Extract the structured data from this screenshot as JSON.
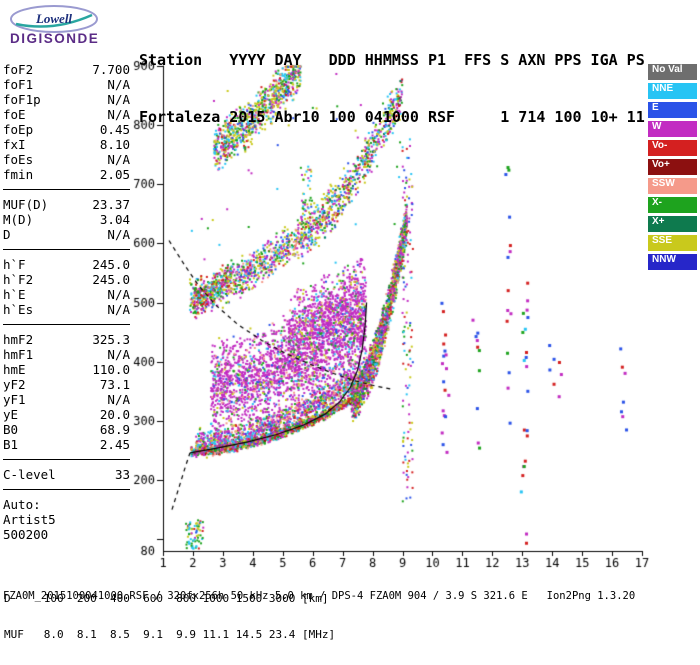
{
  "window": {
    "bg": "#ffffff"
  },
  "logo": {
    "text_top": "Lowell",
    "text_bottom": "DIGISONDE",
    "oval_color": "#9a9ad0",
    "text_top_color": "#1c2f7c",
    "text_bottom_color": "#5b2c86",
    "swoosh_color": "#2aa6a0"
  },
  "header": {
    "line1": "Station   YYYY DAY   DDD HHMMSS P1  FFS S AXN PPS IGA PS",
    "line2": "Fortaleza 2015 Abr10 100 041000 RSF     1 714 100 10+ 11"
  },
  "left_panel": {
    "groups": [
      {
        "rows": [
          [
            "foF2",
            "7.700"
          ],
          [
            "foF1",
            "N/A"
          ],
          [
            "foF1p",
            "N/A"
          ],
          [
            "foE",
            "N/A"
          ],
          [
            "foEp",
            "0.45"
          ],
          [
            "fxI",
            "8.10"
          ],
          [
            "foEs",
            "N/A"
          ],
          [
            "fmin",
            "2.05"
          ]
        ]
      },
      {
        "rows": [
          [
            "MUF(D)",
            "23.37"
          ],
          [
            "M(D)",
            "3.04"
          ],
          [
            "D",
            "N/A"
          ]
        ]
      },
      {
        "rows": [
          [
            "h`F",
            "245.0"
          ],
          [
            "h`F2",
            "245.0"
          ],
          [
            "h`E",
            "N/A"
          ],
          [
            "h`Es",
            "N/A"
          ]
        ]
      },
      {
        "rows": [
          [
            "hmF2",
            "325.3"
          ],
          [
            "hmF1",
            "N/A"
          ],
          [
            "hmE",
            "110.0"
          ],
          [
            "yF2",
            "73.1"
          ],
          [
            "yF1",
            "N/A"
          ],
          [
            "yE",
            "20.0"
          ],
          [
            "B0",
            "68.9"
          ],
          [
            "B1",
            "2.45"
          ]
        ]
      },
      {
        "rows": [
          [
            "C-level",
            "33"
          ]
        ]
      }
    ],
    "footer_lines": [
      "Auto:",
      "Artist5",
      "500200"
    ]
  },
  "legend": {
    "items": [
      {
        "label": "No Val",
        "color": "#6e6e6e"
      },
      {
        "label": "NNE",
        "color": "#27c4f4"
      },
      {
        "label": "E",
        "color": "#2a52e8"
      },
      {
        "label": "W",
        "color": "#c22cc2"
      },
      {
        "label": "Vo-",
        "color": "#d42020"
      },
      {
        "label": "Vo+",
        "color": "#8c1010"
      },
      {
        "label": "SSW",
        "color": "#f59a8a"
      },
      {
        "label": "X-",
        "color": "#1ea31e"
      },
      {
        "label": "X+",
        "color": "#0e7a4e"
      },
      {
        "label": "SSE",
        "color": "#c9c91c"
      },
      {
        "label": "NNW",
        "color": "#2626c9"
      }
    ]
  },
  "chart_data": {
    "type": "scatter",
    "x_axis": {
      "unit": "MHz",
      "min": 1,
      "max": 17,
      "tick_labels": [
        1,
        2,
        3,
        4,
        5,
        6,
        7,
        8,
        9,
        10,
        11,
        12,
        13,
        14,
        15,
        16,
        17
      ]
    },
    "y_axis": {
      "unit": "km",
      "min": 80,
      "max": 900,
      "tick_labels": [
        900,
        800,
        700,
        600,
        500,
        400,
        300,
        200,
        80
      ],
      "tick_marks": [
        100,
        200,
        300,
        400,
        500,
        600,
        700,
        800,
        900
      ]
    },
    "colors": {
      "NoVal": "#6e6e6e",
      "NNE": "#27c4f4",
      "E": "#2a52e8",
      "W": "#c22cc2",
      "Vo-": "#d42020",
      "Vo+": "#8c1010",
      "SSW": "#f59a8a",
      "X-": "#1ea31e",
      "X+": "#0e7a4e",
      "SSE": "#c9c91c",
      "NNW": "#2626c9"
    },
    "echo_regions": [
      {
        "name": "f-trace-core",
        "f0": 1.95,
        "f1": 7.3,
        "h0": 248,
        "h1": 335,
        "curve": 1.8,
        "spread": 9,
        "n": 1200,
        "colors": {
          "Vo-": 0.2,
          "X-": 0.26,
          "Vo+": 0.08,
          "SSE": 0.12,
          "NNE": 0.12,
          "W": 0.12,
          "SSW": 0.1
        }
      },
      {
        "name": "f-trace-upper",
        "f0": 2.1,
        "f1": 7.4,
        "h0": 262,
        "h1": 370,
        "curve": 1.8,
        "spread": 26,
        "n": 1100,
        "colors": {
          "W": 0.34,
          "NNE": 0.15,
          "X-": 0.14,
          "SSE": 0.12,
          "SSW": 0.1,
          "Vo-": 0.09,
          "E": 0.06
        }
      },
      {
        "name": "spread-f-cloud",
        "f0": 2.6,
        "f1": 7.8,
        "h0": 350,
        "h1": 460,
        "curve": 1.3,
        "spread": 90,
        "n": 2300,
        "colors": {
          "W": 0.72,
          "SSW": 0.07,
          "NNE": 0.06,
          "X-": 0.06,
          "SSE": 0.05,
          "E": 0.04
        }
      },
      {
        "name": "spread-f-column",
        "f0": 5.2,
        "f1": 7.75,
        "h0": 450,
        "h1": 515,
        "curve": 1.0,
        "spread": 70,
        "n": 750,
        "colors": {
          "W": 0.7,
          "SSE": 0.08,
          "X-": 0.08,
          "NNE": 0.06,
          "SSW": 0.05,
          "E": 0.03
        }
      },
      {
        "name": "f-cusp",
        "f0": 7.3,
        "f1": 9.15,
        "h0": 340,
        "h1": 640,
        "curve": 1.7,
        "spread": 42,
        "n": 1700,
        "colors": {
          "W": 0.3,
          "X-": 0.16,
          "SSE": 0.16,
          "Vo-": 0.1,
          "NNE": 0.1,
          "SSW": 0.08,
          "E": 0.05,
          "X+": 0.05
        }
      },
      {
        "name": "second-hop",
        "f0": 1.9,
        "f1": 5.7,
        "h0": 505,
        "h1": 615,
        "curve": 1.3,
        "spread": 38,
        "n": 700,
        "colors": {
          "W": 0.3,
          "SSE": 0.18,
          "X-": 0.16,
          "NNE": 0.12,
          "Vo-": 0.08,
          "SSW": 0.08,
          "E": 0.08
        }
      },
      {
        "name": "second-hop-start",
        "f0": 2.0,
        "f1": 3.3,
        "h0": 500,
        "h1": 545,
        "curve": 1.0,
        "spread": 28,
        "n": 260,
        "colors": {
          "X-": 0.25,
          "W": 0.25,
          "SSE": 0.2,
          "NNE": 0.15,
          "Vo-": 0.15
        }
      },
      {
        "name": "third-hop",
        "f0": 2.7,
        "f1": 5.6,
        "h0": 760,
        "h1": 895,
        "curve": 1.2,
        "spread": 45,
        "n": 850,
        "colors": {
          "SSE": 0.28,
          "X-": 0.18,
          "NNE": 0.16,
          "W": 0.16,
          "E": 0.08,
          "Vo-": 0.08,
          "SSW": 0.06
        }
      },
      {
        "name": "second-hop-cusp",
        "f0": 5.7,
        "f1": 9.0,
        "h0": 620,
        "h1": 855,
        "curve": 1.4,
        "spread": 45,
        "n": 650,
        "colors": {
          "SSE": 0.24,
          "W": 0.24,
          "X-": 0.14,
          "NNE": 0.12,
          "Vo-": 0.1,
          "X+": 0.08,
          "E": 0.08
        }
      },
      {
        "name": "interhop-column",
        "f0": 5.6,
        "f1": 6.0,
        "h0": 600,
        "h1": 730,
        "uniform": true,
        "n": 60,
        "colors": {
          "SSE": 0.3,
          "X-": 0.25,
          "W": 0.25,
          "NNE": 0.2
        }
      },
      {
        "name": "spread-column-9mhz",
        "f0": 9.0,
        "f1": 9.35,
        "h0": 160,
        "h1": 780,
        "uniform": true,
        "n": 130,
        "colors": {
          "W": 0.25,
          "E": 0.2,
          "Vo-": 0.15,
          "X-": 0.15,
          "NNE": 0.1,
          "SSE": 0.15
        }
      },
      {
        "name": "rfi-10mhz",
        "f0": 10.3,
        "f1": 10.55,
        "h0": 240,
        "h1": 500,
        "uniform": true,
        "n": 18,
        "colors": {
          "W": 0.3,
          "E": 0.25,
          "Vo-": 0.2,
          "X-": 0.25
        }
      },
      {
        "name": "rfi-11mhz",
        "f0": 11.35,
        "f1": 11.6,
        "h0": 250,
        "h1": 530,
        "uniform": true,
        "n": 10,
        "colors": {
          "E": 0.3,
          "W": 0.3,
          "Vo-": 0.2,
          "X-": 0.2
        }
      },
      {
        "name": "rfi-12mhz",
        "f0": 12.45,
        "f1": 12.65,
        "h0": 290,
        "h1": 740,
        "uniform": true,
        "n": 15,
        "colors": {
          "E": 0.4,
          "Vo-": 0.2,
          "W": 0.2,
          "X-": 0.2
        }
      },
      {
        "name": "rfi-13mhz",
        "f0": 12.95,
        "f1": 13.2,
        "h0": 90,
        "h1": 570,
        "uniform": true,
        "n": 22,
        "colors": {
          "E": 0.3,
          "Vo-": 0.25,
          "W": 0.2,
          "X-": 0.15,
          "NNE": 0.1
        }
      },
      {
        "name": "rfi-14mhz",
        "f0": 13.9,
        "f1": 14.35,
        "h0": 340,
        "h1": 430,
        "uniform": true,
        "n": 7,
        "colors": {
          "E": 0.4,
          "W": 0.3,
          "Vo-": 0.3
        }
      },
      {
        "name": "rfi-16mhz",
        "f0": 16.25,
        "f1": 16.5,
        "h0": 250,
        "h1": 430,
        "uniform": true,
        "n": 7,
        "colors": {
          "W": 0.4,
          "E": 0.3,
          "Vo-": 0.3
        }
      },
      {
        "name": "e-region-cluster",
        "f0": 1.75,
        "f1": 2.35,
        "h0": 84,
        "h1": 132,
        "uniform": true,
        "n": 70,
        "colors": {
          "X-": 0.3,
          "NNE": 0.28,
          "SSE": 0.18,
          "Vo-": 0.1,
          "W": 0.08,
          "E": 0.06
        }
      },
      {
        "name": "high-noise",
        "f0": 1.9,
        "f1": 9.2,
        "h0": 560,
        "h1": 895,
        "uniform": true,
        "n": 50,
        "colors": {
          "SSE": 0.3,
          "W": 0.25,
          "X-": 0.2,
          "NNE": 0.15,
          "E": 0.1
        }
      }
    ],
    "curves": [
      {
        "name": "artist-true-height-profile",
        "style": "solid",
        "points": [
          [
            1.9,
            246
          ],
          [
            2.8,
            254
          ],
          [
            3.8,
            264
          ],
          [
            4.8,
            277
          ],
          [
            5.7,
            293
          ],
          [
            6.4,
            311
          ],
          [
            6.9,
            332
          ],
          [
            7.25,
            356
          ],
          [
            7.5,
            386
          ],
          [
            7.65,
            420
          ],
          [
            7.75,
            460
          ],
          [
            7.8,
            500
          ]
        ]
      },
      {
        "name": "profile-e-region-model",
        "style": "dashed",
        "points": [
          [
            1.3,
            150
          ],
          [
            1.55,
            190
          ],
          [
            1.72,
            218
          ],
          [
            1.9,
            246
          ]
        ]
      },
      {
        "name": "muf-transmission-curve",
        "style": "dashed",
        "points": [
          [
            1.2,
            605
          ],
          [
            1.7,
            565
          ],
          [
            2.2,
            528
          ],
          [
            2.8,
            494
          ],
          [
            3.5,
            463
          ],
          [
            4.3,
            436
          ],
          [
            5.1,
            414
          ],
          [
            5.9,
            396
          ],
          [
            6.7,
            380
          ],
          [
            7.4,
            368
          ],
          [
            8.1,
            359
          ],
          [
            8.7,
            353
          ]
        ]
      }
    ],
    "dmuf_table": {
      "row1_label": "D",
      "row1_values": [
        "100",
        "200",
        "400",
        "600",
        "800",
        "1000",
        "1500",
        "3000"
      ],
      "row1_unit": "[km]",
      "row2_label": "MUF",
      "row2_values": [
        "8.0",
        "8.1",
        "8.5",
        "9.1",
        "9.9",
        "11.1",
        "14.5",
        "23.4"
      ],
      "row2_unit": "[MHz]"
    }
  },
  "footer": {
    "status_line": "FZA0M_2015100041000.RSF / 320fx256h 50 kHz 5.0 km / DPS-4 FZA0M 904 / 3.9 S 321.6 E   Ion2Png 1.3.20"
  }
}
